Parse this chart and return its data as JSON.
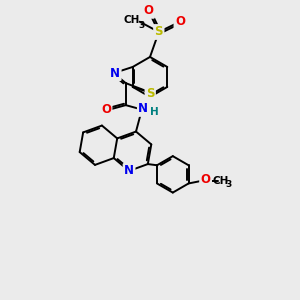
{
  "bg_color": "#ebebeb",
  "bond_color": "#000000",
  "bond_width": 1.4,
  "dbo": 0.055,
  "atom_colors": {
    "C": "#000000",
    "N": "#0000ee",
    "O": "#ee0000",
    "S": "#bbbb00",
    "H": "#008080"
  },
  "fs": 8.5
}
